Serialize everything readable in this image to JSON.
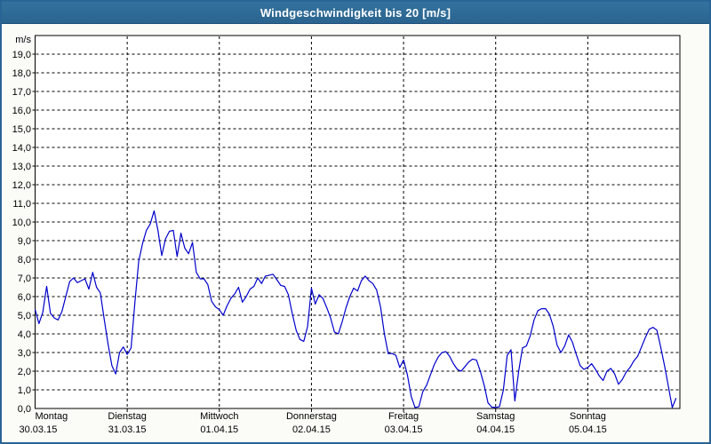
{
  "window": {
    "title": "Windgeschwindigkeit bis 20 [m/s]"
  },
  "colors": {
    "titlebar_top": "#34729f",
    "titlebar_bottom": "#2a648f",
    "title_text": "#ffffff",
    "page_border": "#2a6496",
    "page_background": "#fbfcf8",
    "plot_background": "#ffffff",
    "plot_border": "#000000",
    "grid": "#000000",
    "line": "#0000cc",
    "axis_text": "#000000"
  },
  "chart_data": {
    "type": "line",
    "title": "Windgeschwindigkeit bis 20 [m/s]",
    "unit_label": "m/s",
    "ylim": [
      0,
      20
    ],
    "ytick_step": 1,
    "ytick_labels": [
      "0,0",
      "1,0",
      "2,0",
      "3,0",
      "4,0",
      "5,0",
      "6,0",
      "7,0",
      "8,0",
      "9,0",
      "10,0",
      "11,0",
      "12,0",
      "13,0",
      "14,0",
      "15,0",
      "16,0",
      "17,0",
      "18,0",
      "19,0"
    ],
    "grid": "dashed",
    "legend": "none",
    "x_days": [
      {
        "name": "Montag",
        "date": "30.03.15"
      },
      {
        "name": "Dienstag",
        "date": "31.03.15"
      },
      {
        "name": "Mittwoch",
        "date": "01.04.15"
      },
      {
        "name": "Donnerstag",
        "date": "02.04.15"
      },
      {
        "name": "Freitag",
        "date": "03.04.15"
      },
      {
        "name": "Samstag",
        "date": "04.04.15"
      },
      {
        "name": "Sonntag",
        "date": "05.04.15"
      }
    ],
    "sampling": "hourly",
    "series": [
      {
        "name": "Windgeschwindigkeit [m/s]",
        "values": [
          5.3,
          4.55,
          5.15,
          6.55,
          5.1,
          4.85,
          4.75,
          5.2,
          6.0,
          6.8,
          7.0,
          6.75,
          6.85,
          6.95,
          6.4,
          7.3,
          6.5,
          6.2,
          4.8,
          3.45,
          2.3,
          1.85,
          3.0,
          3.3,
          2.9,
          3.25,
          5.7,
          7.9,
          8.85,
          9.55,
          9.9,
          10.6,
          9.55,
          8.2,
          9.1,
          9.5,
          9.55,
          8.15,
          9.4,
          8.6,
          8.3,
          8.9,
          7.3,
          6.95,
          6.95,
          6.65,
          5.75,
          5.45,
          5.3,
          5.0,
          5.5,
          5.9,
          6.15,
          6.5,
          5.7,
          6.0,
          6.4,
          6.55,
          7.0,
          6.7,
          7.1,
          7.15,
          7.2,
          6.9,
          6.6,
          6.55,
          6.1,
          5.1,
          4.2,
          3.7,
          3.6,
          4.4,
          6.45,
          5.6,
          6.1,
          5.9,
          5.4,
          4.85,
          4.1,
          4.0,
          4.65,
          5.4,
          6.0,
          6.45,
          6.3,
          6.85,
          7.1,
          6.85,
          6.7,
          6.35,
          5.45,
          4.0,
          2.95,
          2.95,
          2.85,
          2.2,
          2.6,
          1.8,
          0.65,
          0.05,
          0.1,
          0.9,
          1.25,
          1.8,
          2.35,
          2.75,
          3.0,
          3.05,
          2.8,
          2.4,
          2.1,
          2.0,
          2.25,
          2.5,
          2.65,
          2.6,
          2.0,
          1.25,
          0.3,
          0.07,
          0.05,
          0.1,
          1.0,
          2.85,
          3.15,
          0.4,
          2.0,
          3.25,
          3.35,
          3.9,
          4.75,
          5.25,
          5.35,
          5.35,
          5.05,
          4.4,
          3.4,
          3.0,
          3.35,
          3.95,
          3.55,
          2.9,
          2.3,
          2.1,
          2.2,
          2.4,
          2.1,
          1.75,
          1.5,
          2.0,
          2.15,
          1.85,
          1.3,
          1.55,
          1.95,
          2.2,
          2.55,
          2.8,
          3.3,
          3.8,
          4.25,
          4.35,
          4.2,
          3.3,
          2.3,
          1.2,
          0.05,
          0.55
        ]
      }
    ]
  }
}
